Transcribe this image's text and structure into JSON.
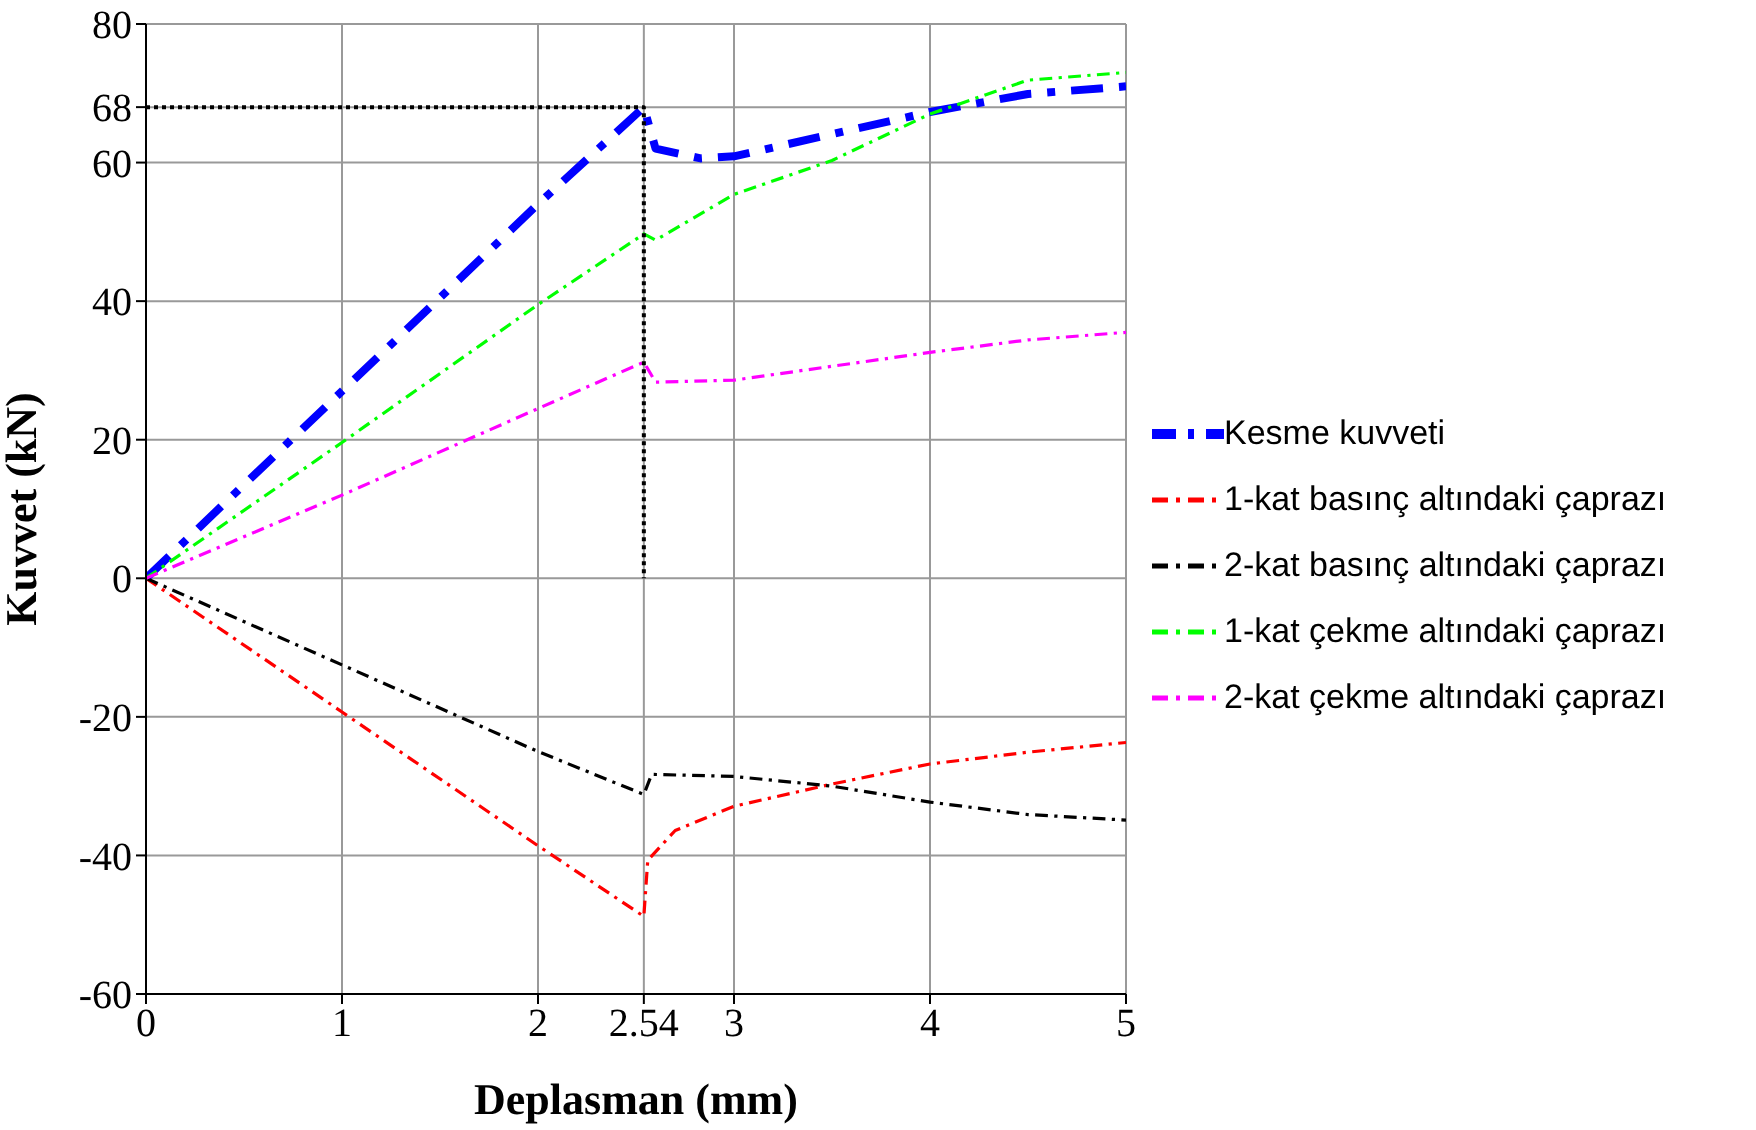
{
  "chart_data": {
    "type": "line",
    "xlabel": "Deplasman (mm)",
    "ylabel": "Kuvvet (kN)",
    "xlim": [
      0,
      5
    ],
    "xticks": [
      0,
      1,
      2,
      2.54,
      3,
      4,
      5
    ],
    "ylim": [
      -60,
      80
    ],
    "yticks": [
      -60,
      -40,
      -20,
      0,
      20,
      40,
      60,
      68,
      80
    ],
    "grid": true,
    "legend": "right",
    "line_style": "dashed",
    "series": [
      {
        "name": "Kesme kuvveti",
        "color": "#0000ff",
        "x": [
          0,
          1,
          2,
          2.54,
          2.6,
          2.83,
          3,
          3.5,
          4,
          4.5,
          5
        ],
        "values": [
          0,
          27,
          54,
          68,
          62,
          60.6,
          60.9,
          64.1,
          67.3,
          69.9,
          71
        ]
      },
      {
        "name": "1-kat basınç altındaki çaprazı",
        "color": "#ff0000",
        "x": [
          0,
          1,
          2,
          2.54,
          2.56,
          2.7,
          3,
          3.5,
          4,
          4.5,
          5
        ],
        "values": [
          0,
          -19.3,
          -38.6,
          -48.8,
          -40.7,
          -36.4,
          -32.9,
          -29.7,
          -26.8,
          -25.1,
          -23.7
        ]
      },
      {
        "name": "2-kat basınç altındaki çaprazı",
        "color": "#000000",
        "x": [
          0,
          1,
          2,
          2.54,
          2.58,
          3,
          3.5,
          4,
          4.5,
          5
        ],
        "values": [
          0,
          -12.5,
          -25,
          -31.2,
          -28.3,
          -28.6,
          -30,
          -32.3,
          -34.1,
          -34.9
        ]
      },
      {
        "name": "1-kat çekme altındaki çaprazı",
        "color": "#00ff00",
        "x": [
          0,
          1,
          2,
          2.54,
          2.6,
          3,
          3.5,
          4,
          4.5,
          5
        ],
        "values": [
          0,
          19.6,
          39.5,
          49.7,
          48.8,
          55.4,
          60.3,
          67,
          71.9,
          73
        ]
      },
      {
        "name": "2-kat çekme altındaki çaprazı",
        "color": "#ff00ff",
        "x": [
          0,
          1,
          2,
          2.54,
          2.6,
          3,
          3.5,
          4,
          4.5,
          5
        ],
        "values": [
          0,
          12,
          24.5,
          31.2,
          28.3,
          28.6,
          30.6,
          32.6,
          34.4,
          35.5
        ]
      },
      {
        "type": "line",
        "color": "#000000",
        "line_style": "dotted",
        "x": [
          0,
          2.54,
          2.54
        ],
        "values": [
          68,
          68,
          0
        ]
      }
    ]
  }
}
